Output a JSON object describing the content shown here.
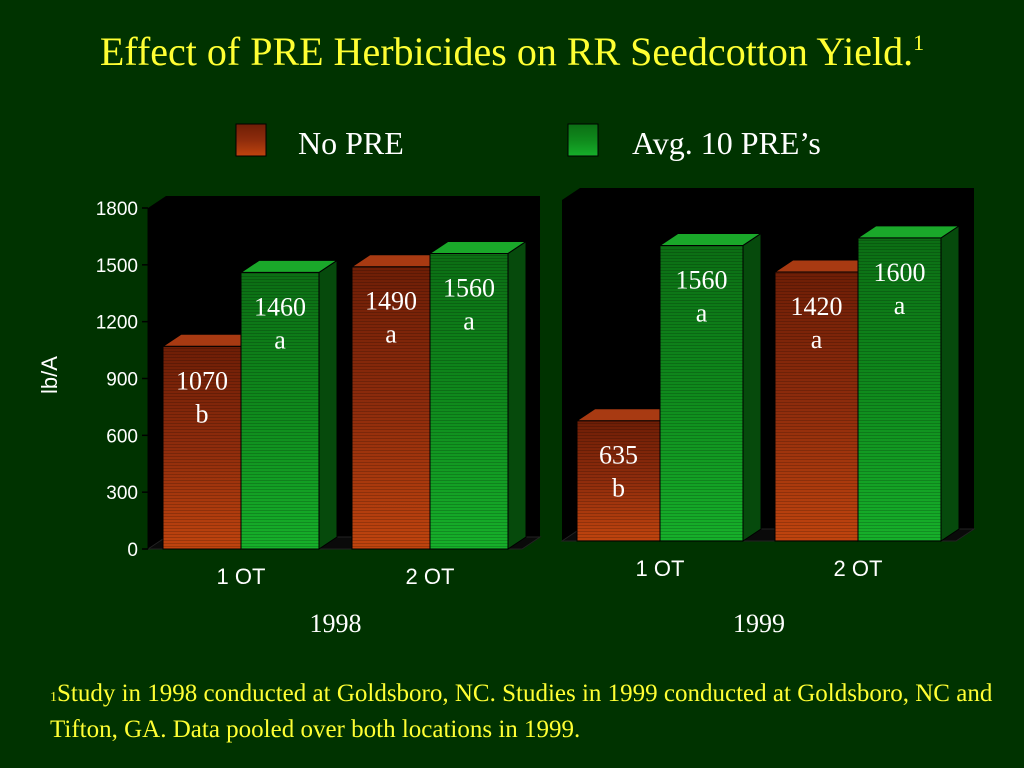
{
  "title": "Effect of PRE Herbicides on RR Seedcotton Yield.",
  "title_footnote_mark": "1",
  "footnote": {
    "mark": "1",
    "text": "Study in 1998 conducted at Goldsboro, NC.  Studies in 1999 conducted at Goldsboro, NC and Tifton, GA.  Data pooled over both locations in 1999."
  },
  "colors": {
    "background": "#003300",
    "no_pre": "#8b2a0a",
    "avg_pre": "#0a8a1a",
    "text_yellow": "#ffff33"
  },
  "chart_data": {
    "type": "bar",
    "ylabel": "lb/A",
    "ylim": [
      0,
      1800
    ],
    "yticks": [
      "0",
      "300",
      "600",
      "900",
      "1200",
      "1500",
      "1800"
    ],
    "legend": {
      "placement": "top",
      "entries": [
        {
          "name": "No PRE",
          "color": "#8b2a0a"
        },
        {
          "name": "Avg. 10 PRE’s",
          "color": "#0a8a1a"
        }
      ]
    },
    "panels": [
      {
        "group_label": "1998",
        "categories": [
          "1 OT",
          "2 OT"
        ],
        "series": [
          {
            "name": "No PRE",
            "values": [
              1070,
              1490
            ],
            "labels": [
              "1070",
              "1490"
            ],
            "letters": [
              "b",
              "a"
            ]
          },
          {
            "name": "Avg. 10 PRE’s",
            "values": [
              1460,
              1560
            ],
            "labels": [
              "1460",
              "1560"
            ],
            "letters": [
              "a",
              "a"
            ]
          }
        ]
      },
      {
        "group_label": "1999",
        "categories": [
          "1 OT",
          "2 OT"
        ],
        "series": [
          {
            "name": "No PRE",
            "values": [
              635,
              1420
            ],
            "labels": [
              "635",
              "1420"
            ],
            "letters": [
              "b",
              "a"
            ]
          },
          {
            "name": "Avg. 10 PRE’s",
            "values": [
              1560,
              1600
            ],
            "labels": [
              "1560",
              "1600"
            ],
            "letters": [
              "a",
              "a"
            ]
          }
        ]
      }
    ]
  }
}
